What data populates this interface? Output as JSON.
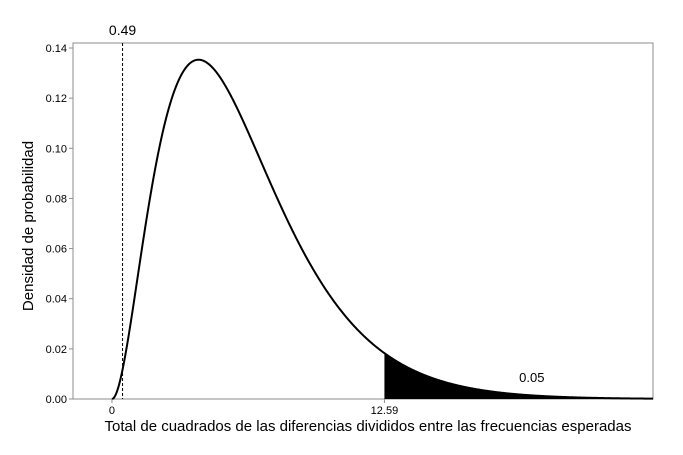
{
  "chart_data": {
    "type": "area",
    "distribution": "chi-square",
    "degrees_of_freedom": 6,
    "xlabel": "Total de cuadrados de las diferencias divididos entre las frecuencias esperadas",
    "ylabel": "Densidad de probabilidad",
    "xlim": [
      -1.8,
      25.0
    ],
    "ylim": [
      0,
      0.142
    ],
    "x_ticks": [
      0,
      12.59
    ],
    "y_ticks": [
      0.0,
      0.02,
      0.04,
      0.06,
      0.08,
      0.1,
      0.12,
      0.14
    ],
    "y_tick_labels": [
      "0.00",
      "0.02",
      "0.04",
      "0.06",
      "0.08",
      "0.10",
      "0.12",
      "0.14"
    ],
    "reference_line": {
      "x": 0.49,
      "label": "0.49"
    },
    "shaded_region": {
      "x_start": 12.59,
      "x_end": 25.0,
      "label": "0.05"
    },
    "grid": false,
    "legend": "none",
    "colors": {
      "curve": "#000000",
      "shade": "#000000",
      "frame": "#8c8c8c"
    }
  }
}
